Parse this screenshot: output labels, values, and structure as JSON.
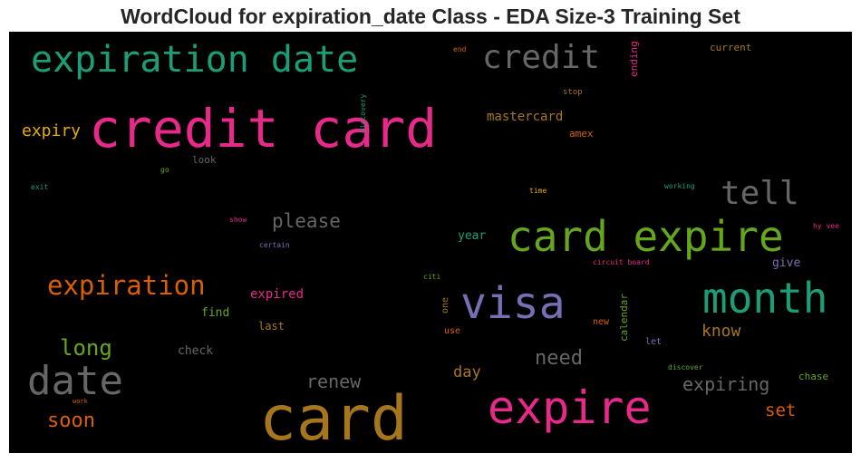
{
  "chart_data": {
    "type": "wordcloud",
    "title": "WordCloud for expiration_date Class - EDA Size-3 Training Set",
    "background": "#000000",
    "words": [
      {
        "text": "credit card",
        "color": "#e7298a"
      },
      {
        "text": "card",
        "color": "#a6761d"
      },
      {
        "text": "card expire",
        "color": "#66a61e"
      },
      {
        "text": "expiration date",
        "color": "#1b9e77"
      },
      {
        "text": "expire",
        "color": "#e7298a"
      },
      {
        "text": "visa",
        "color": "#7570b3"
      },
      {
        "text": "month",
        "color": "#1b9e77"
      },
      {
        "text": "date",
        "color": "#666666"
      },
      {
        "text": "credit",
        "color": "#666666"
      },
      {
        "text": "tell",
        "color": "#666666"
      },
      {
        "text": "expiration",
        "color": "#d95f02"
      },
      {
        "text": "please",
        "color": "#666666"
      },
      {
        "text": "long",
        "color": "#66a61e"
      },
      {
        "text": "soon",
        "color": "#d95f02"
      },
      {
        "text": "need",
        "color": "#666666"
      },
      {
        "text": "expiring",
        "color": "#666666"
      },
      {
        "text": "renew",
        "color": "#666666"
      },
      {
        "text": "expiry",
        "color": "#e6ab02"
      },
      {
        "text": "know",
        "color": "#a6761d"
      },
      {
        "text": "set",
        "color": "#d95f02"
      },
      {
        "text": "day",
        "color": "#a6761d"
      },
      {
        "text": "mastercard",
        "color": "#a6761d"
      },
      {
        "text": "expired",
        "color": "#e7298a"
      },
      {
        "text": "year",
        "color": "#1b9e77"
      },
      {
        "text": "give",
        "color": "#7570b3"
      },
      {
        "text": "find",
        "color": "#66a61e"
      },
      {
        "text": "check",
        "color": "#666666"
      },
      {
        "text": "last",
        "color": "#a6761d"
      },
      {
        "text": "amex",
        "color": "#d95f02"
      },
      {
        "text": "look",
        "color": "#666666"
      },
      {
        "text": "current",
        "color": "#a6761d"
      },
      {
        "text": "ending",
        "color": "#e7298a"
      },
      {
        "text": "calendar",
        "color": "#66a61e"
      },
      {
        "text": "one",
        "color": "#a6761d"
      },
      {
        "text": "use",
        "color": "#d95f02"
      },
      {
        "text": "new",
        "color": "#d95f02"
      },
      {
        "text": "let",
        "color": "#7570b3"
      },
      {
        "text": "chase",
        "color": "#66a61e"
      },
      {
        "text": "stop",
        "color": "#a6761d"
      },
      {
        "text": "discovery",
        "color": "#1b9e77"
      },
      {
        "text": "end",
        "color": "#d95f02"
      },
      {
        "text": "go",
        "color": "#66a61e"
      },
      {
        "text": "exit",
        "color": "#1b9e77"
      },
      {
        "text": "time",
        "color": "#e6ab02"
      },
      {
        "text": "working",
        "color": "#1b9e77"
      },
      {
        "text": "show",
        "color": "#e7298a"
      },
      {
        "text": "certain",
        "color": "#7570b3"
      },
      {
        "text": "hy vee",
        "color": "#e7298a"
      },
      {
        "text": "circuit board",
        "color": "#e7298a"
      },
      {
        "text": "citi",
        "color": "#66a61e"
      },
      {
        "text": "discover",
        "color": "#66a61e"
      },
      {
        "text": "work",
        "color": "#d95f02"
      }
    ]
  }
}
